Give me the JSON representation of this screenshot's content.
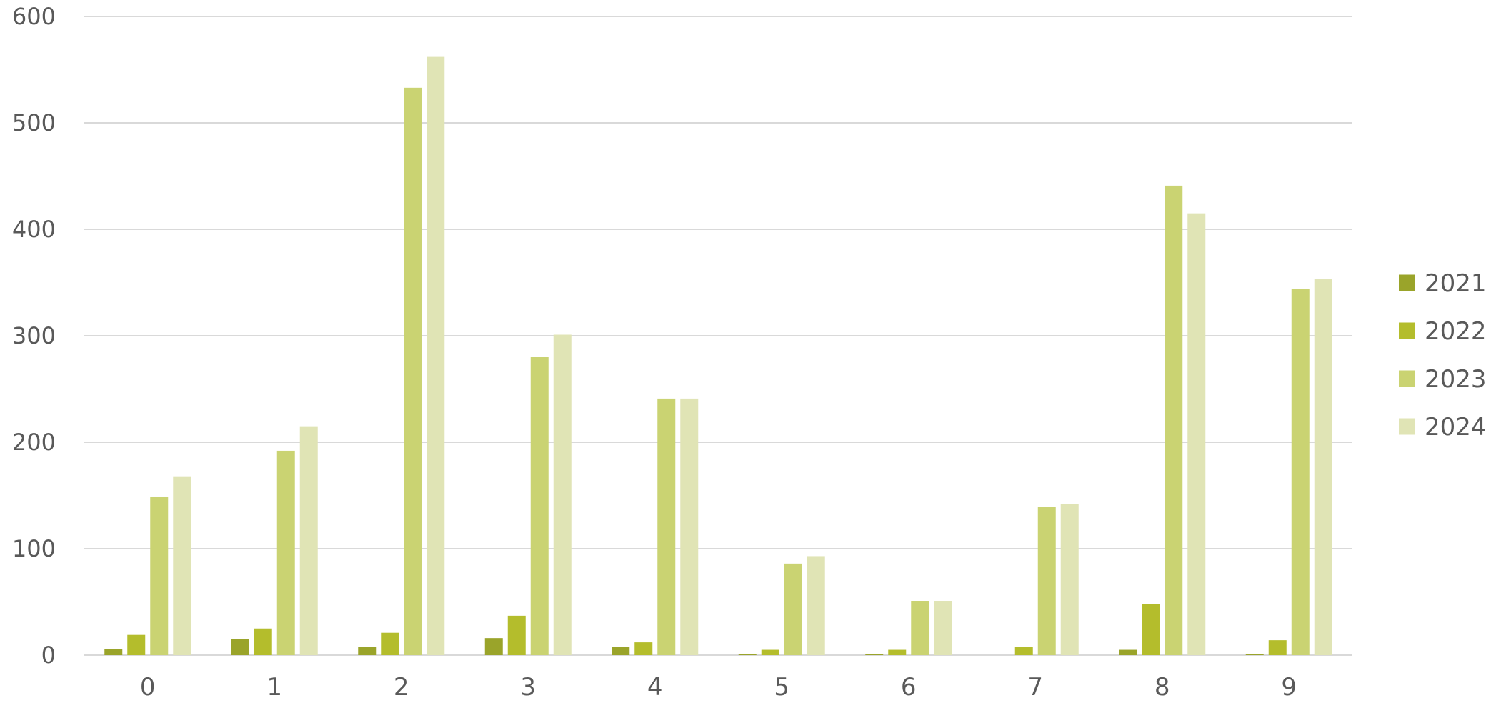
{
  "chart_data": {
    "type": "bar",
    "title": "",
    "xlabel": "",
    "ylabel": "",
    "categories": [
      "0",
      "1",
      "2",
      "3",
      "4",
      "5",
      "6",
      "7",
      "8",
      "9"
    ],
    "ylim": [
      0,
      600
    ],
    "yticks": [
      0,
      100,
      200,
      300,
      400,
      500,
      600
    ],
    "grid": true,
    "legend_position": "right",
    "series": [
      {
        "name": "2021",
        "color": "#9aa42a",
        "values": [
          6,
          15,
          8,
          16,
          8,
          1,
          1,
          0,
          5,
          1
        ]
      },
      {
        "name": "2022",
        "color": "#b4bd2c",
        "values": [
          19,
          25,
          21,
          37,
          12,
          5,
          5,
          8,
          48,
          14
        ]
      },
      {
        "name": "2023",
        "color": "#cad372",
        "values": [
          149,
          192,
          533,
          280,
          241,
          86,
          51,
          139,
          441,
          344
        ]
      },
      {
        "name": "2024",
        "color": "#e0e4b5",
        "values": [
          168,
          215,
          562,
          301,
          241,
          93,
          51,
          142,
          415,
          353
        ]
      }
    ]
  }
}
